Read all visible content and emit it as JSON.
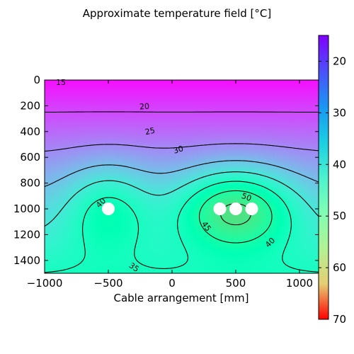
{
  "chart_data": {
    "type": "heatmap",
    "title": "Approximate temperature field [$^\\circ$C]",
    "title_display": "Approximate temperature field [°C]",
    "xlabel": "Cable arrangement [mm]",
    "ylabel": "",
    "xlim": [
      -1000,
      1150
    ],
    "ylim": [
      1500,
      0
    ],
    "x_ticks": [
      -1000,
      -500,
      0,
      500,
      1000
    ],
    "x_tick_labels": [
      "−1000",
      "−500",
      "0",
      "500",
      "1000"
    ],
    "y_ticks": [
      0,
      200,
      400,
      600,
      800,
      1000,
      1200,
      1400
    ],
    "y_tick_labels": [
      "0",
      "200",
      "400",
      "600",
      "800",
      "1000",
      "1200",
      "1400"
    ],
    "colorbar": {
      "range": [
        15,
        70
      ],
      "ticks": [
        20,
        30,
        40,
        50,
        60,
        70
      ],
      "colormap": "rainbow"
    },
    "contour_levels": [
      15,
      20,
      25,
      30,
      35,
      40,
      45,
      50
    ],
    "contour_label_values": [
      "15",
      "20",
      "25",
      "30",
      "30",
      "35",
      "40",
      "40",
      "45",
      "50"
    ],
    "cables": [
      {
        "x": -500,
        "y": 1000
      },
      {
        "x": 375,
        "y": 1000
      },
      {
        "x": 500,
        "y": 1000
      },
      {
        "x": 625,
        "y": 1000
      }
    ],
    "grid": false
  }
}
